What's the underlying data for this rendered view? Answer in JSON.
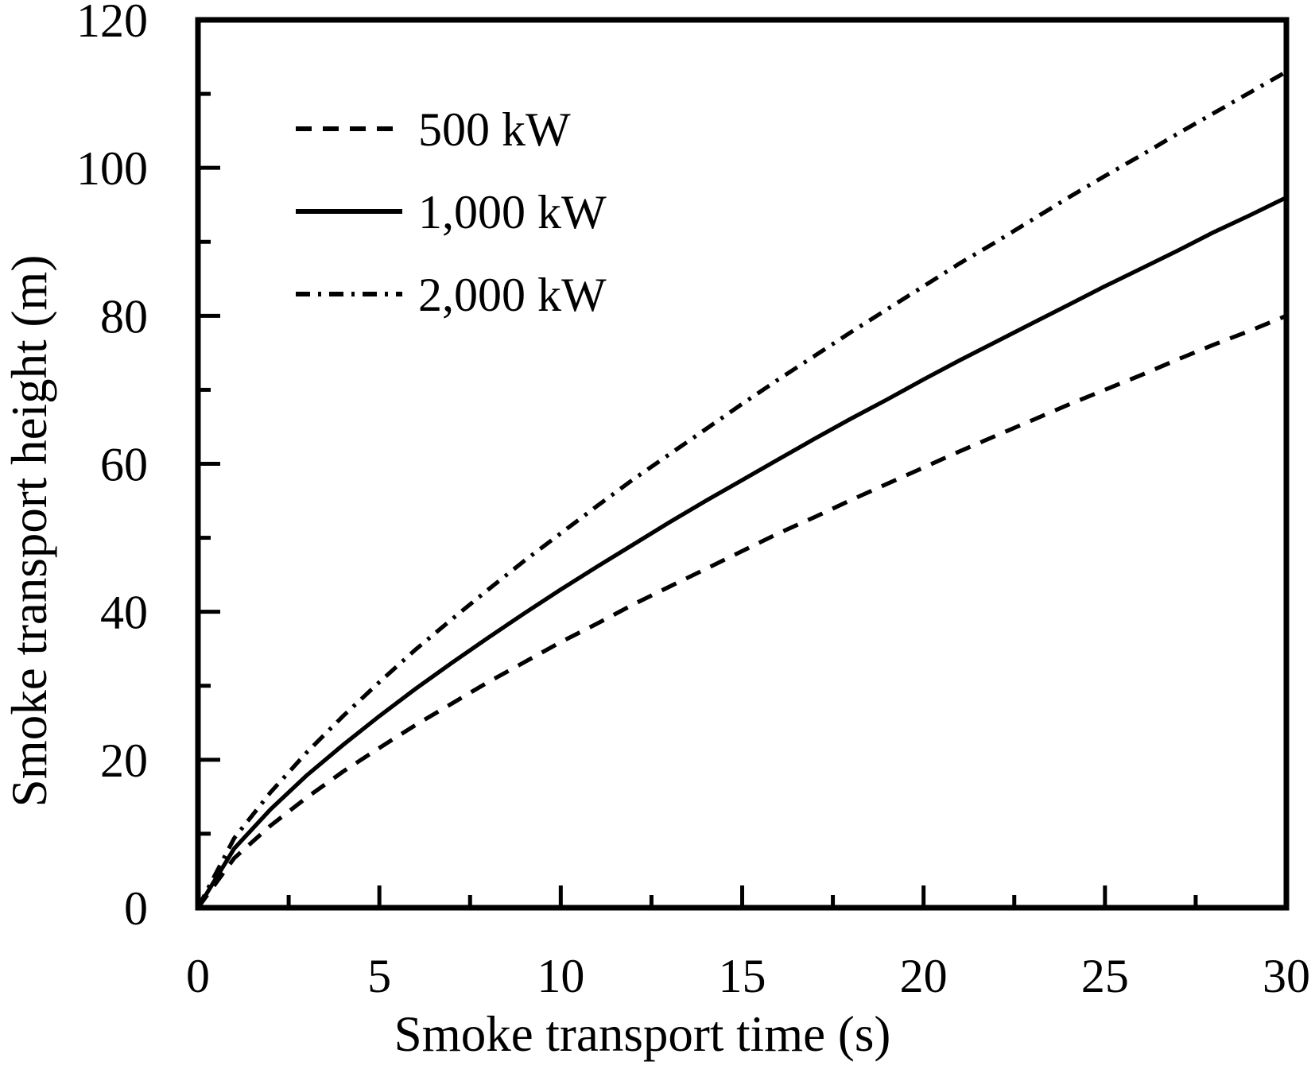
{
  "figure": {
    "background_color": "#ffffff",
    "ink_color": "#000000"
  },
  "chart_data": {
    "type": "line",
    "title": "",
    "xlabel": "Smoke transport time (s)",
    "ylabel": "Smoke transport height (m)",
    "xlim": [
      0,
      30
    ],
    "ylim": [
      0,
      120
    ],
    "x_major_ticks": [
      0,
      5,
      10,
      15,
      20,
      25,
      30
    ],
    "x_minor_tick_step": 2.5,
    "y_major_ticks": [
      0,
      20,
      40,
      60,
      80,
      100,
      120
    ],
    "y_minor_tick_step": 10,
    "grid": false,
    "legend_position": "upper-left-inside",
    "x": [
      0,
      1,
      2,
      3,
      4,
      5,
      6,
      7,
      8,
      9,
      10,
      11,
      12,
      13,
      14,
      15,
      16,
      17,
      18,
      19,
      20,
      21,
      22,
      23,
      24,
      25,
      26,
      27,
      28,
      29,
      30
    ],
    "series": [
      {
        "name": "500 kW",
        "line_style": "dashed",
        "values": [
          0,
          6.7,
          11.1,
          14.9,
          18.4,
          21.6,
          24.7,
          27.6,
          30.5,
          33.2,
          35.9,
          38.4,
          41.0,
          43.4,
          45.8,
          48.2,
          50.6,
          52.8,
          55.1,
          57.3,
          59.5,
          61.7,
          63.8,
          65.9,
          68.0,
          70.0,
          72.0,
          74.1,
          76.1,
          78.0,
          80.0
        ]
      },
      {
        "name": "1,000 kW",
        "line_style": "solid",
        "values": [
          0,
          8.0,
          13.3,
          17.9,
          22.0,
          25.9,
          29.6,
          33.1,
          36.5,
          39.8,
          43.0,
          46.1,
          49.1,
          52.1,
          55.0,
          57.8,
          60.6,
          63.4,
          66.1,
          68.7,
          71.4,
          74.0,
          76.5,
          79.0,
          81.5,
          84.0,
          86.4,
          88.8,
          91.3,
          93.6,
          96.0
        ]
      },
      {
        "name": "2,000 kW",
        "line_style": "dash-dot",
        "values": [
          0,
          9.4,
          15.6,
          21.0,
          25.9,
          30.5,
          34.9,
          39.0,
          43.0,
          46.9,
          50.6,
          54.3,
          57.9,
          61.3,
          64.7,
          68.1,
          71.4,
          74.6,
          77.8,
          80.9,
          84.0,
          87.1,
          90.0,
          93.0,
          96.0,
          98.9,
          101.7,
          104.6,
          107.4,
          110.2,
          113.0
        ]
      }
    ]
  }
}
